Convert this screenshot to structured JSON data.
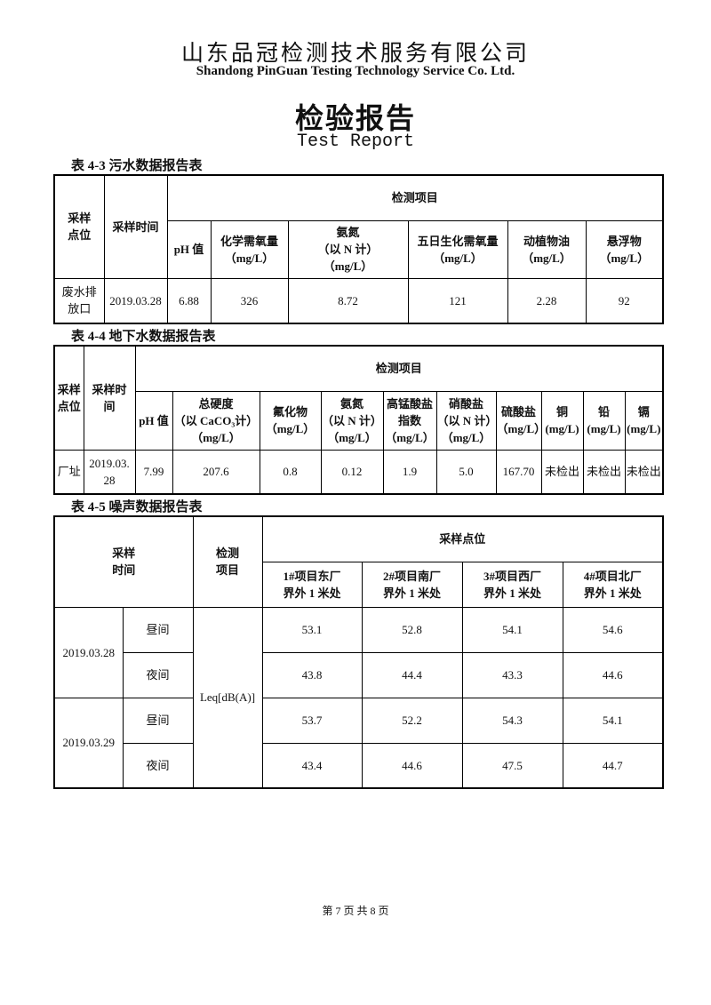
{
  "header": {
    "company_cn": "山东品冠检测技术服务有限公司",
    "company_en": "Shandong PinGuan Testing Technology Service Co. Ltd.",
    "title_cn": "检验报告",
    "title_en": "Test Report"
  },
  "table1": {
    "caption": "表 4-3 污水数据报告表",
    "point": [
      "采样",
      "点位"
    ],
    "time": "采样时间",
    "items": "检测项目",
    "columns": [
      [
        "pH 值"
      ],
      [
        "化学需氧量",
        "（mg/L）"
      ],
      [
        "氨氮",
        "（以 N 计）",
        "（mg/L）"
      ],
      [
        "五日生化需氧量",
        "（mg/L）"
      ],
      [
        "动植物油",
        "（mg/L）"
      ],
      [
        "悬浮物",
        "（mg/L）"
      ]
    ],
    "rows": [
      [
        [
          "废水排",
          "放口"
        ],
        "2019.03.28",
        "6.88",
        "326",
        "8.72",
        "121",
        "2.28",
        "92"
      ]
    ]
  },
  "table2": {
    "caption": "表 4-4 地下水数据报告表",
    "point": [
      "采样",
      "点位"
    ],
    "time": [
      "采样时",
      "间"
    ],
    "items": "检测项目",
    "columns": [
      [
        "pH 值"
      ],
      [
        "总硬度",
        "（以 CaCO₃计）",
        "（mg/L）"
      ],
      [
        "氟化物",
        "（mg/L）"
      ],
      [
        "氨氮",
        "（以 N 计）",
        "（mg/L）"
      ],
      [
        "高锰酸盐",
        "指数",
        "（mg/L）"
      ],
      [
        "硝酸盐",
        "（以 N 计）",
        "（mg/L）"
      ],
      [
        "硫酸盐",
        "（mg/L）"
      ],
      [
        "铜",
        "(mg/L)"
      ],
      [
        "铅",
        "(mg/L)"
      ],
      [
        "镉",
        "(mg/L)"
      ]
    ],
    "rows": [
      [
        "厂址",
        [
          "2019.03.",
          "28"
        ],
        "7.99",
        "207.6",
        "0.8",
        "0.12",
        "1.9",
        "5.0",
        "167.70",
        "未检出",
        "未检出",
        "未检出"
      ]
    ]
  },
  "table3": {
    "caption": "表 4-5 噪声数据报告表",
    "time": [
      "采样",
      "时间"
    ],
    "item": [
      "检测",
      "项目"
    ],
    "points": "采样点位",
    "columns": [
      [
        "1#项目东厂",
        "界外 1 米处"
      ],
      [
        "2#项目南厂",
        "界外 1 米处"
      ],
      [
        "3#项目西厂",
        "界外 1 米处"
      ],
      [
        "4#项目北厂",
        "界外 1 米处"
      ]
    ],
    "parameter": "Leq[dB(A)]",
    "rows": [
      {
        "date": "2019.03.28",
        "periods": [
          {
            "name": "昼间",
            "values": [
              "53.1",
              "52.8",
              "54.1",
              "54.6"
            ]
          },
          {
            "name": "夜间",
            "values": [
              "43.8",
              "44.4",
              "43.3",
              "44.6"
            ]
          }
        ]
      },
      {
        "date": "2019.03.29",
        "periods": [
          {
            "name": "昼间",
            "values": [
              "53.7",
              "52.2",
              "54.3",
              "54.1"
            ]
          },
          {
            "name": "夜间",
            "values": [
              "43.4",
              "44.6",
              "47.5",
              "44.7"
            ]
          }
        ]
      }
    ]
  },
  "footer": {
    "page": "第 7 页 共 8 页"
  }
}
